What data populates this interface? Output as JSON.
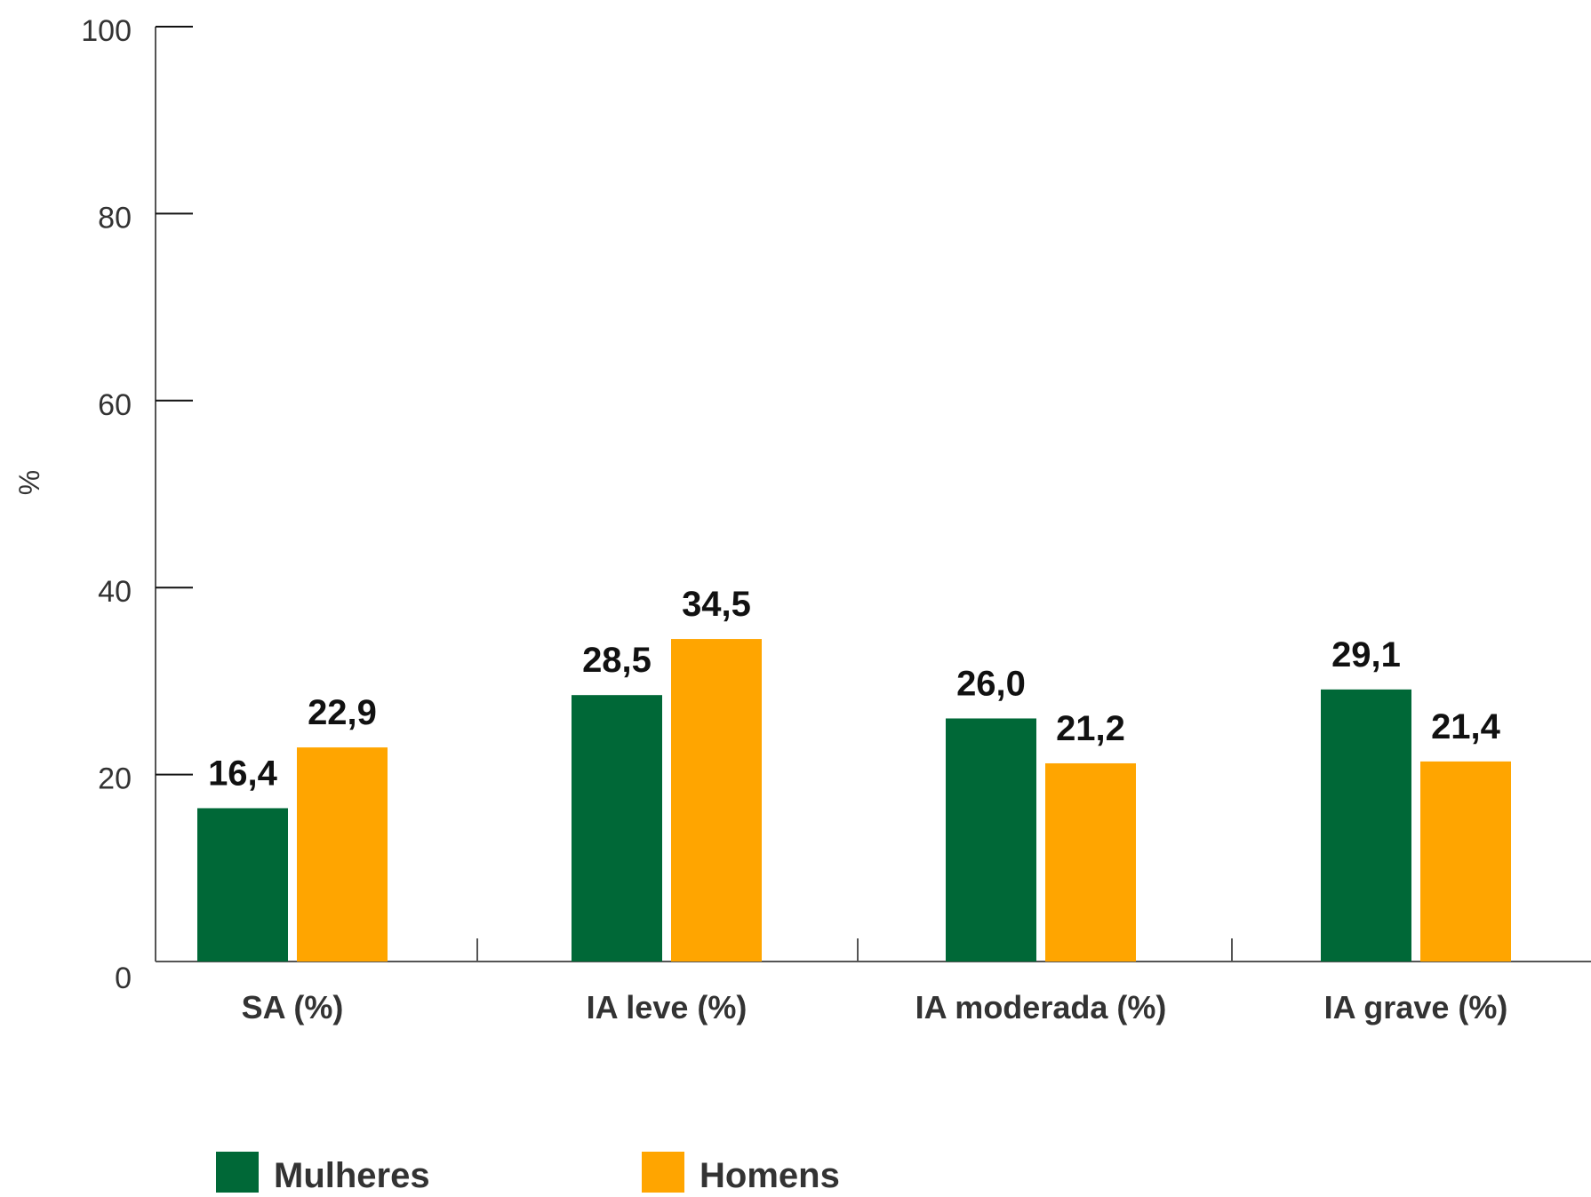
{
  "chart_data": {
    "type": "bar",
    "ylabel": "%",
    "ylim": [
      0,
      100
    ],
    "yticks": [
      0,
      20,
      40,
      60,
      80,
      100
    ],
    "categories": [
      "SA  (%)",
      "IA leve  (%)",
      "IA moderada (%)",
      "IA grave (%)"
    ],
    "series": [
      {
        "name": "Mulheres",
        "color": "#006837",
        "values": [
          16.4,
          28.5,
          26.0,
          29.1
        ],
        "labels": [
          "16,4",
          "28,5",
          "26,0",
          "29,1"
        ]
      },
      {
        "name": "Homens",
        "color": "#FFA500",
        "values": [
          22.9,
          34.5,
          21.2,
          21.4
        ],
        "labels": [
          "22,9",
          "34,5",
          "21,2",
          "21,4"
        ]
      }
    ],
    "legend": "bottom-left",
    "grid": false
  }
}
